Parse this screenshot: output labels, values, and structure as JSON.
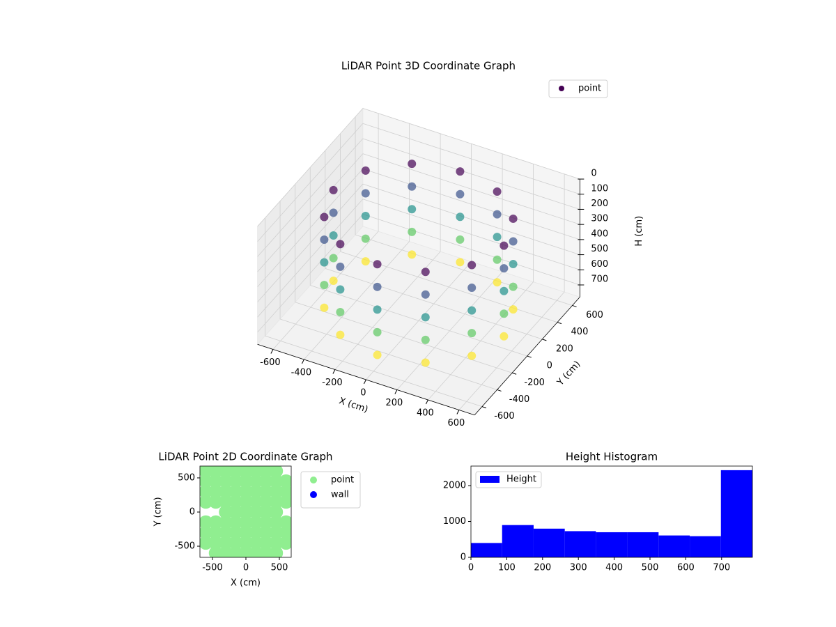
{
  "chart_data": [
    {
      "type": "scatter3d",
      "title": "LiDAR Point 3D Coordinate Graph",
      "xlabel": "X (cm)",
      "ylabel": "Y (cm)",
      "zlabel": "H (cm)",
      "xlim": [
        -700,
        700
      ],
      "ylim": [
        -700,
        700
      ],
      "zlim": [
        0,
        780
      ],
      "z_inverted": true,
      "xticks": [
        -600,
        -400,
        -200,
        0,
        200,
        400,
        600
      ],
      "yticks": [
        -600,
        -400,
        -200,
        0,
        200,
        400,
        600
      ],
      "zticks": [
        0,
        100,
        200,
        300,
        400,
        500,
        600,
        700
      ],
      "grid": true,
      "legend": "upper right",
      "series": [
        {
          "name": "point",
          "colormap": "viridis",
          "x": [
            550,
            476,
            275,
            0,
            -275,
            -476,
            -550,
            -476,
            -275,
            0,
            275,
            476,
            550,
            476,
            275,
            0,
            -275,
            -476,
            -550,
            -476,
            -275,
            0,
            275,
            476,
            550,
            476,
            275,
            0,
            -275,
            -476,
            -550,
            -476,
            -275,
            0,
            275,
            476,
            550,
            476,
            275,
            0,
            -275,
            -476,
            -550,
            -476,
            -275,
            0,
            275,
            476,
            550,
            476,
            275,
            0,
            -275,
            -476,
            -550,
            -476,
            -275,
            0,
            275,
            476
          ],
          "y": [
            0,
            275,
            476,
            550,
            476,
            275,
            0,
            -275,
            -476,
            -550,
            -476,
            -275,
            0,
            275,
            476,
            550,
            476,
            275,
            0,
            -275,
            -476,
            -550,
            -476,
            -275,
            0,
            275,
            476,
            550,
            476,
            275,
            0,
            -275,
            -476,
            -550,
            -476,
            -275,
            0,
            275,
            476,
            550,
            476,
            275,
            0,
            -275,
            -476,
            -550,
            -476,
            -275,
            0,
            275,
            476,
            550,
            476,
            275,
            0,
            -275,
            -476,
            -550,
            -476,
            -275
          ],
          "z": [
            100,
            100,
            100,
            100,
            100,
            100,
            100,
            100,
            100,
            100,
            100,
            100,
            250,
            250,
            250,
            250,
            250,
            250,
            250,
            250,
            250,
            250,
            250,
            250,
            400,
            400,
            400,
            400,
            400,
            400,
            400,
            400,
            400,
            400,
            400,
            400,
            550,
            550,
            550,
            550,
            550,
            550,
            550,
            550,
            550,
            550,
            550,
            550,
            700,
            700,
            700,
            700,
            700,
            700,
            700,
            700,
            700,
            700,
            700,
            700
          ]
        }
      ]
    },
    {
      "type": "scatter",
      "title": "LiDAR Point 2D Coordinate Graph",
      "xlabel": "X (cm)",
      "ylabel": "Y (cm)",
      "xlim": [
        -687,
        677
      ],
      "ylim": [
        -663,
        673
      ],
      "xticks": [
        -500,
        0,
        500
      ],
      "yticks": [
        -500,
        0,
        500
      ],
      "legend": "outside upper right",
      "series": [
        {
          "name": "point",
          "color": "#90ee90",
          "x": [
            -600,
            -450,
            -300,
            -150,
            0,
            150,
            300,
            450,
            -600,
            -450,
            -300,
            -150,
            0,
            150,
            300,
            450,
            600,
            -600,
            -450,
            -300,
            -150,
            0,
            150,
            300,
            450,
            600,
            -600,
            -450,
            -300,
            -150,
            0,
            150,
            300,
            450,
            600,
            -300,
            -150,
            0,
            150,
            300,
            450,
            -600,
            -450,
            -300,
            -150,
            0,
            150,
            300,
            450,
            600,
            -600,
            -450,
            -300,
            -150,
            0,
            150,
            300,
            450,
            600,
            -600,
            -450,
            -300,
            -150,
            0,
            150,
            300,
            450,
            600,
            -450,
            -300,
            -150,
            0,
            150,
            300,
            450
          ],
          "y": [
            600,
            600,
            600,
            600,
            600,
            600,
            600,
            600,
            450,
            450,
            450,
            450,
            450,
            450,
            450,
            450,
            450,
            300,
            300,
            300,
            300,
            300,
            300,
            300,
            300,
            300,
            150,
            150,
            150,
            150,
            150,
            150,
            150,
            150,
            150,
            0,
            0,
            0,
            0,
            0,
            0,
            -150,
            -150,
            -150,
            -150,
            -150,
            -150,
            -150,
            -150,
            -150,
            -300,
            -300,
            -300,
            -300,
            -300,
            -300,
            -300,
            -300,
            -300,
            -450,
            -450,
            -450,
            -450,
            -450,
            -450,
            -450,
            -450,
            -450,
            -600,
            -600,
            -600,
            -600,
            -600,
            -600,
            -600
          ]
        },
        {
          "name": "wall",
          "color": "#0000ff",
          "x": [],
          "y": []
        }
      ]
    },
    {
      "type": "histogram",
      "title": "Height Histogram",
      "bins": [
        0,
        87,
        175,
        262,
        349,
        436,
        524,
        611,
        698,
        786
      ],
      "values": [
        400,
        900,
        800,
        730,
        700,
        700,
        610,
        590,
        2430
      ],
      "name": "Height",
      "color": "#0000ff",
      "legend": "upper left",
      "xlim": [
        0,
        786
      ],
      "ylim": [
        0,
        2545
      ],
      "xticks": [
        0,
        100,
        200,
        300,
        400,
        500,
        600,
        700
      ],
      "yticks": [
        0,
        1000,
        2000
      ]
    }
  ]
}
